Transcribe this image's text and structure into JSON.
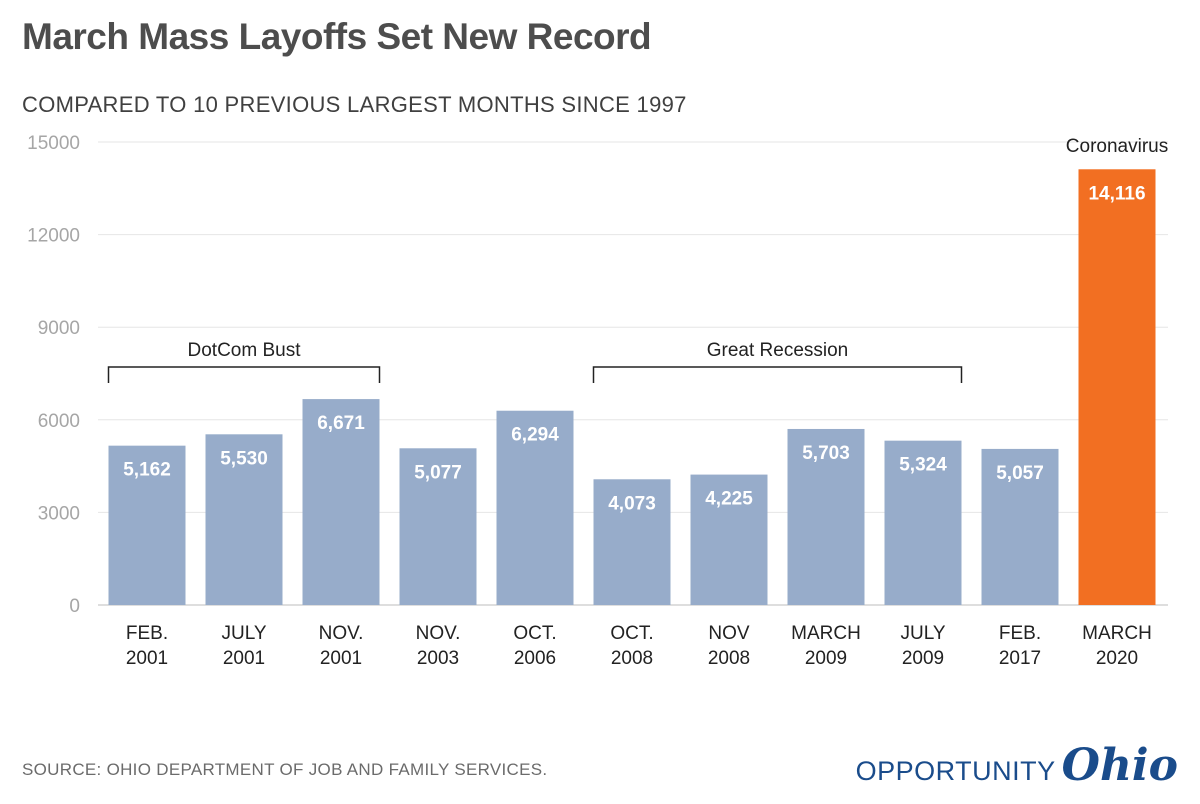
{
  "title": "March Mass Layoffs Set New Record",
  "subtitle": "COMPARED TO 10 PREVIOUS LARGEST MONTHS SINCE 1997",
  "source": "SOURCE: OHIO DEPARTMENT OF JOB AND FAMILY SERVICES.",
  "logo": {
    "text": "OPPORTUNITY",
    "script": "Ohio"
  },
  "colors": {
    "bar": "#97acca",
    "highlight": "#f26f22",
    "logo": "#1a4c8b"
  },
  "chart_data": {
    "type": "bar",
    "categories": [
      [
        "FEB.",
        "2001"
      ],
      [
        "JULY",
        "2001"
      ],
      [
        "NOV.",
        "2001"
      ],
      [
        "NOV.",
        "2003"
      ],
      [
        "OCT.",
        "2006"
      ],
      [
        "OCT.",
        "2008"
      ],
      [
        "NOV",
        "2008"
      ],
      [
        "MARCH",
        "2009"
      ],
      [
        "JULY",
        "2009"
      ],
      [
        "FEB.",
        "2017"
      ],
      [
        "MARCH",
        "2020"
      ]
    ],
    "values": [
      5162,
      5530,
      6671,
      5077,
      6294,
      4073,
      4225,
      5703,
      5324,
      5057,
      14116
    ],
    "value_labels": [
      "5,162",
      "5,530",
      "6,671",
      "5,077",
      "6,294",
      "4,073",
      "4,225",
      "5,703",
      "5,324",
      "5,057",
      "14,116"
    ],
    "highlight_index": 10,
    "highlight_label": "Coronavirus",
    "ylim": [
      0,
      15000
    ],
    "yticks": [
      0,
      3000,
      6000,
      9000,
      12000,
      15000
    ],
    "grid": true,
    "brackets": [
      {
        "label": "DotCom Bust",
        "from": 0,
        "to": 2
      },
      {
        "label": "Great Recession",
        "from": 5,
        "to": 8
      }
    ]
  }
}
